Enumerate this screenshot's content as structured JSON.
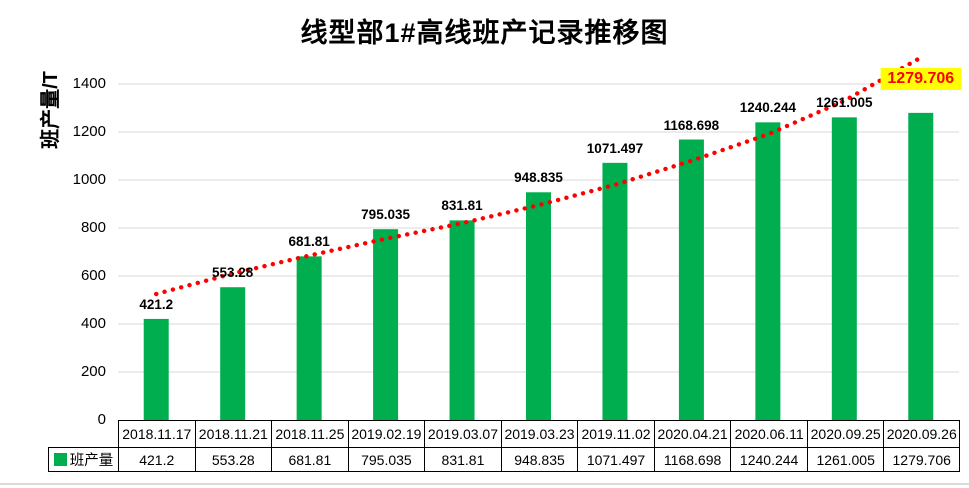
{
  "chart_data": {
    "type": "bar",
    "title": "线型部1#高线班产记录推移图",
    "ylabel": "班产量/T",
    "categories": [
      "2018.11.17",
      "2018.11.21",
      "2018.11.25",
      "2019.02.19",
      "2019.03.07",
      "2019.03.23",
      "2019.11.02",
      "2020.04.21",
      "2020.06.11",
      "2020.09.25",
      "2020.09.26"
    ],
    "series": [
      {
        "name": "班产量",
        "color": "#00AE50",
        "values": [
          421.2,
          553.28,
          681.81,
          795.035,
          831.81,
          948.835,
          1071.497,
          1168.698,
          1240.244,
          1261.005,
          1279.706
        ]
      }
    ],
    "ylim": [
      0,
      1500
    ],
    "yticks": [
      0,
      200,
      400,
      600,
      800,
      1000,
      1200,
      1400
    ],
    "grid": true,
    "gridline_color": "#D9D9D9",
    "axis_line_color": "#000000",
    "data_labels": true,
    "legend_position": "table-bottom-left",
    "trendline": {
      "style": "dotted",
      "color": "#FF0000",
      "values": [
        525,
        610,
        685,
        755,
        820,
        895,
        980,
        1080,
        1190,
        1330,
        1510
      ]
    },
    "last_label_highlight": {
      "background": "#FFFF00",
      "text_color": "#FF0000"
    }
  }
}
